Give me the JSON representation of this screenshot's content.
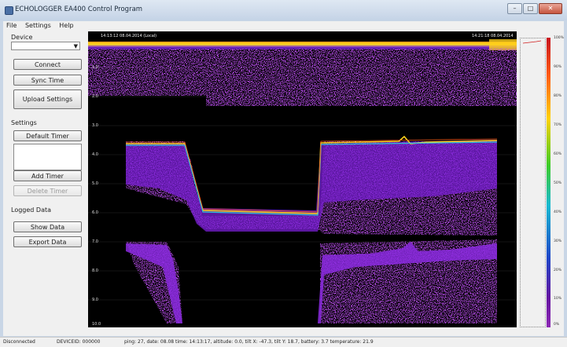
{
  "window": {
    "title": "ECHOLOGGER EA400 Control Program"
  },
  "menu": [
    "File",
    "Settings",
    "Help"
  ],
  "sidebar": {
    "device_label": "Device",
    "device_value": "",
    "connect_label": "Connect",
    "sync_time_label": "Sync Time",
    "upload_settings_label": "Upload Settings",
    "settings_label": "Settings",
    "default_timer_label": "Default Timer",
    "add_timer_label": "Add Timer",
    "delete_timer_label": "Delete Timer",
    "logged_data_label": "Logged Data",
    "show_data_label": "Show Data",
    "export_data_label": "Export Data"
  },
  "echogram": {
    "start_time": "14:13:12 08.04.2014 (Local)",
    "end_time": "14:21:18 08.04.2014",
    "depth_ticks": [
      "1.0",
      "2.0",
      "3.0",
      "4.0",
      "5.0",
      "6.0",
      "7.0",
      "8.0",
      "9.0",
      "10.0"
    ],
    "depth_range": [
      0,
      10
    ]
  },
  "colorbar": {
    "labels": [
      "100%",
      "90%",
      "80%",
      "70%",
      "60%",
      "50%",
      "40%",
      "30%",
      "20%",
      "10%",
      "0%"
    ]
  },
  "status": {
    "connection": "Disconnected",
    "device_id": "DEVICEID: 000000",
    "info": "ping: 27, date: 08.08 time: 14:13:17, altitude: 0.0, tilt X: -47.3, tilt Y: 18.7, battery: 3.7 temperature: 21.9"
  }
}
